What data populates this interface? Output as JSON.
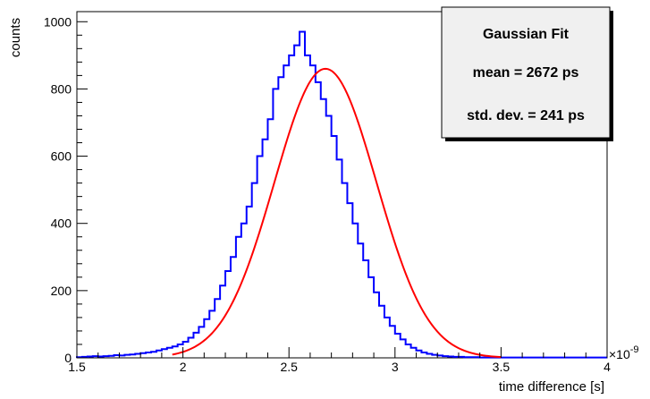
{
  "chart_data": {
    "type": "histogram",
    "xlabel": "time difference [s]",
    "ylabel": "counts",
    "x_exponent_label": "×10",
    "x_exponent_power": "-9",
    "xlim": [
      1.5,
      4.0
    ],
    "ylim": [
      0,
      1030
    ],
    "xticks": [
      1.5,
      2,
      2.5,
      3,
      3.5,
      4
    ],
    "xtick_labels": [
      "1.5",
      "2",
      "2.5",
      "3",
      "3.5",
      "4"
    ],
    "yticks": [
      0,
      200,
      400,
      600,
      800,
      1000
    ],
    "ytick_labels": [
      "0",
      "200",
      "400",
      "600",
      "800",
      "1000"
    ],
    "grid": false,
    "histogram": {
      "color": "#0000ff",
      "bin_width": 0.025,
      "bin_start": 1.5,
      "counts": [
        2,
        3,
        4,
        5,
        4,
        5,
        6,
        8,
        7,
        9,
        10,
        12,
        14,
        16,
        18,
        22,
        26,
        30,
        34,
        40,
        48,
        60,
        75,
        92,
        115,
        140,
        175,
        215,
        258,
        300,
        360,
        400,
        450,
        520,
        600,
        650,
        710,
        800,
        835,
        870,
        900,
        930,
        970,
        900,
        870,
        820,
        770,
        720,
        660,
        590,
        520,
        460,
        400,
        340,
        290,
        240,
        195,
        155,
        120,
        95,
        72,
        55,
        40,
        30,
        22,
        16,
        12,
        9,
        7,
        5,
        4,
        3,
        3,
        2,
        2,
        2,
        1,
        1,
        1,
        1,
        1,
        1,
        1,
        1,
        1,
        1,
        1,
        1,
        1,
        1,
        1,
        1,
        1,
        1,
        1,
        1,
        1,
        1,
        1,
        1
      ]
    },
    "fit": {
      "name": "Gaussian Fit",
      "color": "#ff0000",
      "amplitude": 860,
      "mean_s": 2.672,
      "sigma_s": 0.241,
      "x_range": [
        1.95,
        3.5
      ]
    },
    "stats_box": {
      "title": "Gaussian Fit",
      "mean_text": "mean = 2672 ps",
      "std_text": "std. dev. = 241 ps"
    }
  }
}
